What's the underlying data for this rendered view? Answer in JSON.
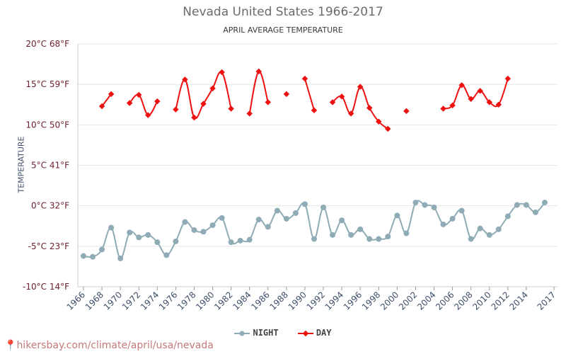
{
  "chart_data": {
    "type": "line",
    "title": "Nevada United States 1966-2017",
    "subtitle": "APRIL AVERAGE TEMPERATURE",
    "ylabel": "TEMPERATURE",
    "ylim": [
      -10,
      20
    ],
    "y_ticks": [
      {
        "value": 20,
        "label": "20°C 68°F"
      },
      {
        "value": 15,
        "label": "15°C 59°F"
      },
      {
        "value": 10,
        "label": "10°C 50°F"
      },
      {
        "value": 5,
        "label": "5°C 41°F"
      },
      {
        "value": 0,
        "label": "0°C 32°F"
      },
      {
        "value": -5,
        "label": "-5°C 23°F"
      },
      {
        "value": -10,
        "label": "-10°C 14°F"
      }
    ],
    "x_ticks": [
      "1966",
      "1968",
      "1970",
      "1972",
      "1974",
      "1976",
      "1978",
      "1980",
      "1982",
      "1984",
      "1986",
      "1988",
      "1990",
      "1992",
      "1994",
      "1996",
      "1998",
      "2000",
      "2002",
      "2004",
      "2006",
      "2008",
      "2010",
      "2012",
      "2014",
      "2017"
    ],
    "x": [
      1966,
      1967,
      1968,
      1969,
      1970,
      1971,
      1972,
      1973,
      1974,
      1975,
      1976,
      1977,
      1978,
      1979,
      1980,
      1981,
      1982,
      1983,
      1984,
      1985,
      1986,
      1987,
      1988,
      1989,
      1990,
      1991,
      1992,
      1993,
      1994,
      1995,
      1996,
      1997,
      1998,
      1999,
      2000,
      2001,
      2002,
      2003,
      2004,
      2005,
      2006,
      2007,
      2008,
      2009,
      2010,
      2011,
      2012,
      2013,
      2014,
      2015,
      2016,
      2017
    ],
    "legend_position": "bottom",
    "grid": true,
    "series": [
      {
        "name": "NIGHT",
        "color": "#8fabb5",
        "marker": "circle",
        "values": [
          -6.2,
          -6.3,
          -5.4,
          -2.7,
          -6.5,
          -3.3,
          -3.9,
          -3.6,
          -4.5,
          -6.1,
          -4.4,
          -2.0,
          -3.0,
          -3.2,
          -2.4,
          -1.5,
          -4.5,
          -4.3,
          -4.2,
          -1.7,
          -2.6,
          -0.6,
          -1.6,
          -0.9,
          0.2,
          -4.1,
          -0.2,
          -3.6,
          -1.8,
          -3.6,
          -2.9,
          -4.1,
          -4.1,
          -3.8,
          -1.2,
          -3.4,
          0.4,
          0.1,
          -0.2,
          -2.3,
          -1.6,
          -0.6,
          -4.1,
          -2.8,
          -3.6,
          -2.9,
          -1.3,
          0.1,
          0.1,
          -0.8,
          0.4,
          null
        ]
      },
      {
        "name": "DAY",
        "color": "#ee1111",
        "marker": "diamond",
        "values": [
          null,
          null,
          12.3,
          13.8,
          null,
          12.7,
          13.7,
          11.2,
          12.9,
          null,
          11.9,
          15.6,
          10.9,
          12.6,
          14.5,
          16.5,
          12.0,
          null,
          11.4,
          16.6,
          12.8,
          null,
          13.8,
          null,
          15.7,
          11.8,
          null,
          12.8,
          13.5,
          11.4,
          14.7,
          12.1,
          10.4,
          9.5,
          null,
          11.7,
          null,
          null,
          null,
          12.0,
          12.4,
          14.9,
          13.2,
          14.2,
          12.8,
          12.5,
          15.7,
          null,
          null,
          null,
          null,
          null
        ]
      }
    ]
  },
  "source": "hikersbay.com/climate/april/usa/nevada"
}
